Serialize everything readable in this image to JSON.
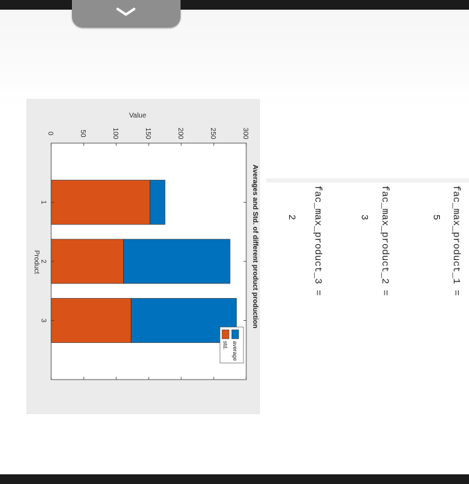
{
  "ui": {
    "tab_icon": "chevron-down-icon",
    "colors": {
      "frame": "#1b1b1b",
      "tab": "#8e8e8e",
      "figure_bg": "#ebebeb"
    }
  },
  "console": {
    "lines": [
      {
        "name": "fac_max_product_1",
        "text": "fac_max_product_1 =",
        "value": "5"
      },
      {
        "name": "fac_max_product_2",
        "text": "fac_max_product_2 =",
        "value": "3"
      },
      {
        "name": "fac_max_product_3",
        "text": "fac_max_product_3 =",
        "value": "2"
      }
    ]
  },
  "chart_data": {
    "type": "bar",
    "stacked": true,
    "title": "Averages and Std. of different product production",
    "xlabel": "Product",
    "ylabel": "Value",
    "categories": [
      "1",
      "2",
      "3"
    ],
    "ylim": [
      0,
      300
    ],
    "yticks": [
      "0",
      "50",
      "100",
      "150",
      "200",
      "250",
      "300"
    ],
    "series": [
      {
        "name": "average",
        "color": "#0072bd",
        "values": [
          23,
          164,
          162
        ]
      },
      {
        "name": "std.",
        "color": "#d95319",
        "values": [
          152,
          111,
          123
        ]
      }
    ],
    "legend_position": "top-right",
    "grid": false,
    "rotation": "figure rotated 90 degrees clockwise"
  }
}
